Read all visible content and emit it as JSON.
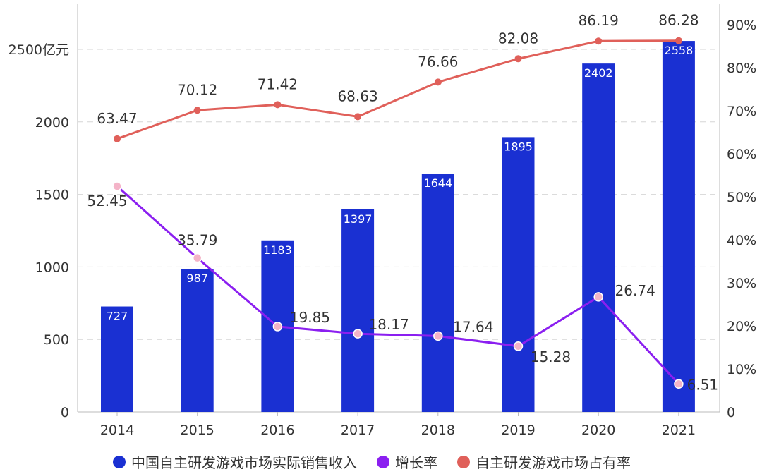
{
  "chart_data": {
    "type": "bar+line",
    "categories": [
      "2014",
      "2015",
      "2016",
      "2017",
      "2018",
      "2019",
      "2020",
      "2021"
    ],
    "series": [
      {
        "name": "中国自主研发游戏市场实际销售收入",
        "type": "bar",
        "axis": "left",
        "color": "#1a30d2",
        "values": [
          727,
          987,
          1183,
          1397,
          1644,
          1895,
          2402,
          2558
        ]
      },
      {
        "name": "增长率",
        "type": "line",
        "axis": "right",
        "color": "#8b1ff0",
        "values": [
          52.45,
          35.79,
          19.85,
          18.17,
          17.64,
          15.28,
          26.74,
          6.51
        ]
      },
      {
        "name": "自主研发游戏市场占有率",
        "type": "line",
        "axis": "right",
        "color": "#e0605a",
        "values": [
          63.47,
          70.12,
          71.42,
          68.63,
          76.66,
          82.08,
          86.19,
          86.28
        ]
      }
    ],
    "left_axis": {
      "ylim": [
        0,
        2500
      ],
      "ticks": [
        "0",
        "500",
        "1000",
        "1500",
        "2000",
        "2500亿元"
      ]
    },
    "right_axis": {
      "ylim": [
        0,
        90
      ],
      "ticks": [
        "0",
        "10%",
        "20%",
        "30%",
        "40%",
        "50%",
        "60%",
        "70%",
        "80%",
        "90%"
      ]
    },
    "grid": true,
    "legend_position": "bottom"
  }
}
